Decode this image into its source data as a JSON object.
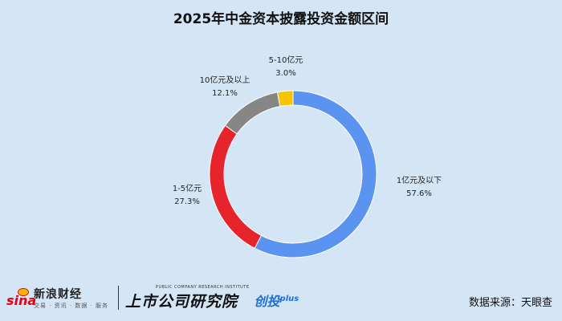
{
  "chart_data": {
    "type": "pie",
    "title": "2025年中金资本披露投资金额区间",
    "categories": [
      "1亿元及以下",
      "1-5亿元",
      "10亿元及以上",
      "5-10亿元"
    ],
    "values": [
      57.6,
      27.3,
      12.1,
      3.0
    ],
    "value_labels": [
      "57.6%",
      "27.3%",
      "12.1%",
      "3.0%"
    ],
    "colors": [
      "#5b94f0",
      "#e5242b",
      "#868686",
      "#f7c500"
    ],
    "donut": true,
    "legend": "none"
  },
  "footer": {
    "sina_logo_text": "sina",
    "sina_name": "新浪财经",
    "sina_sub": "交易 · 资讯 · 数据 · 服务",
    "institute_small": "PUBLIC COMPANY RESEARCH INSTITUTE",
    "institute_name": "上市公司研究院",
    "chuangtou": "创投",
    "chuangtou_plus": "plus",
    "source": "数据来源：天眼查"
  }
}
